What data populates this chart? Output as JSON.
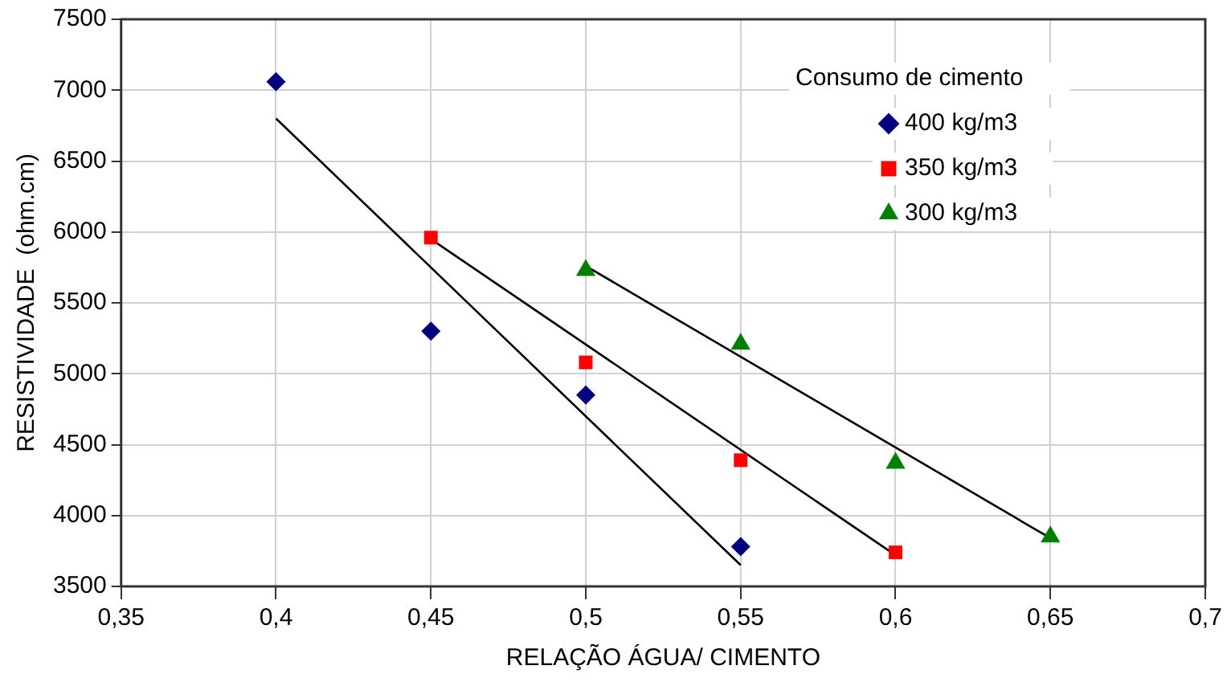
{
  "chart_data": {
    "type": "scatter",
    "xlabel": "RELAÇÃO ÁGUA/ CIMENTO",
    "ylabel": "RESISTIVIDADE  (ohm.cm)",
    "legend_title": "Consumo de cimento",
    "legend": "top right",
    "grid": true,
    "xlim": [
      0.35,
      0.7
    ],
    "xticks": [
      {
        "value": 0.35,
        "label": "0,35"
      },
      {
        "value": 0.4,
        "label": "0,4"
      },
      {
        "value": 0.45,
        "label": "0,45"
      },
      {
        "value": 0.5,
        "label": "0,5"
      },
      {
        "value": 0.55,
        "label": "0,55"
      },
      {
        "value": 0.6,
        "label": "0,6"
      },
      {
        "value": 0.65,
        "label": "0,65"
      },
      {
        "value": 0.7,
        "label": "0,7"
      }
    ],
    "ylim": [
      3500,
      7500
    ],
    "yticks": [
      3500,
      4000,
      4500,
      5000,
      5500,
      6000,
      6500,
      7000,
      7500
    ],
    "series": [
      {
        "name": "400 kg/m3",
        "color": "#000080",
        "marker": "diamond",
        "x": [
          0.4,
          0.45,
          0.5,
          0.55
        ],
        "values": [
          7060,
          5300,
          4850,
          3780
        ]
      },
      {
        "name": "350 kg/m3",
        "color": "#ff0000",
        "marker": "square",
        "x": [
          0.45,
          0.5,
          0.55,
          0.6
        ],
        "values": [
          5960,
          5080,
          4390,
          3740
        ]
      },
      {
        "name": "300 kg/m3",
        "color": "#008000",
        "marker": "triangle",
        "x": [
          0.5,
          0.55,
          0.6,
          0.65
        ],
        "values": [
          5730,
          5210,
          4370,
          3850
        ]
      },
      {
        "type": "line",
        "color": "#000000",
        "marker": "none",
        "x": [
          0.4,
          0.55
        ],
        "values": [
          6800,
          3650
        ]
      },
      {
        "type": "line",
        "color": "#000000",
        "marker": "none",
        "x": [
          0.45,
          0.6
        ],
        "values": [
          5950,
          3720
        ]
      },
      {
        "type": "line",
        "color": "#000000",
        "marker": "none",
        "x": [
          0.5,
          0.65
        ],
        "values": [
          5760,
          3840
        ]
      }
    ]
  }
}
